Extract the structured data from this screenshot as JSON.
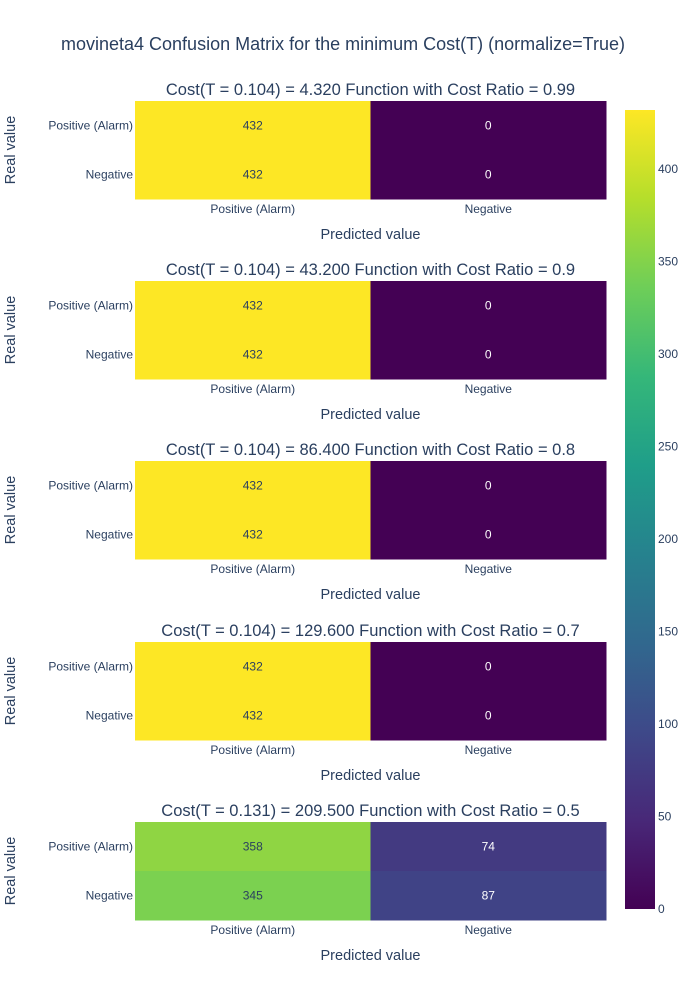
{
  "chart_data": {
    "type": "heatmap",
    "title": "movineta4 Confusion Matrix for the minimum Cost(T) (normalize=True)",
    "colorscale": [
      "#440154",
      "#482878",
      "#3e4989",
      "#31688e",
      "#26828e",
      "#1f9e89",
      "#35b779",
      "#6ece58",
      "#b5de2b",
      "#fde725"
    ],
    "colorbar": {
      "range": [
        0,
        432
      ],
      "ticks": [
        0,
        50,
        100,
        150,
        200,
        250,
        300,
        350,
        400
      ]
    },
    "panels": [
      {
        "title": "Cost(T = 0.104) = 4.320 Function with Cost Ratio = 0.99",
        "xlabel": "Predicted value",
        "ylabel": "Real value",
        "x_categories": [
          "Positive (Alarm)",
          "Negative"
        ],
        "y_categories": [
          "Positive (Alarm)",
          "Negative"
        ],
        "values": [
          [
            432,
            0
          ],
          [
            432,
            0
          ]
        ]
      },
      {
        "title": "Cost(T = 0.104) = 43.200 Function with Cost Ratio = 0.9",
        "xlabel": "Predicted value",
        "ylabel": "Real value",
        "x_categories": [
          "Positive (Alarm)",
          "Negative"
        ],
        "y_categories": [
          "Positive (Alarm)",
          "Negative"
        ],
        "values": [
          [
            432,
            0
          ],
          [
            432,
            0
          ]
        ]
      },
      {
        "title": "Cost(T = 0.104) = 86.400 Function with Cost Ratio = 0.8",
        "xlabel": "Predicted value",
        "ylabel": "Real value",
        "x_categories": [
          "Positive (Alarm)",
          "Negative"
        ],
        "y_categories": [
          "Positive (Alarm)",
          "Negative"
        ],
        "values": [
          [
            432,
            0
          ],
          [
            432,
            0
          ]
        ]
      },
      {
        "title": "Cost(T = 0.104) = 129.600 Function with Cost Ratio = 0.7",
        "xlabel": "Predicted value",
        "ylabel": "Real value",
        "x_categories": [
          "Positive (Alarm)",
          "Negative"
        ],
        "y_categories": [
          "Positive (Alarm)",
          "Negative"
        ],
        "values": [
          [
            432,
            0
          ],
          [
            432,
            0
          ]
        ]
      },
      {
        "title": "Cost(T = 0.131) = 209.500 Function with Cost Ratio = 0.5",
        "xlabel": "Predicted value",
        "ylabel": "Real value",
        "x_categories": [
          "Positive (Alarm)",
          "Negative"
        ],
        "y_categories": [
          "Positive (Alarm)",
          "Negative"
        ],
        "values": [
          [
            358,
            74
          ],
          [
            345,
            87
          ]
        ]
      }
    ]
  }
}
